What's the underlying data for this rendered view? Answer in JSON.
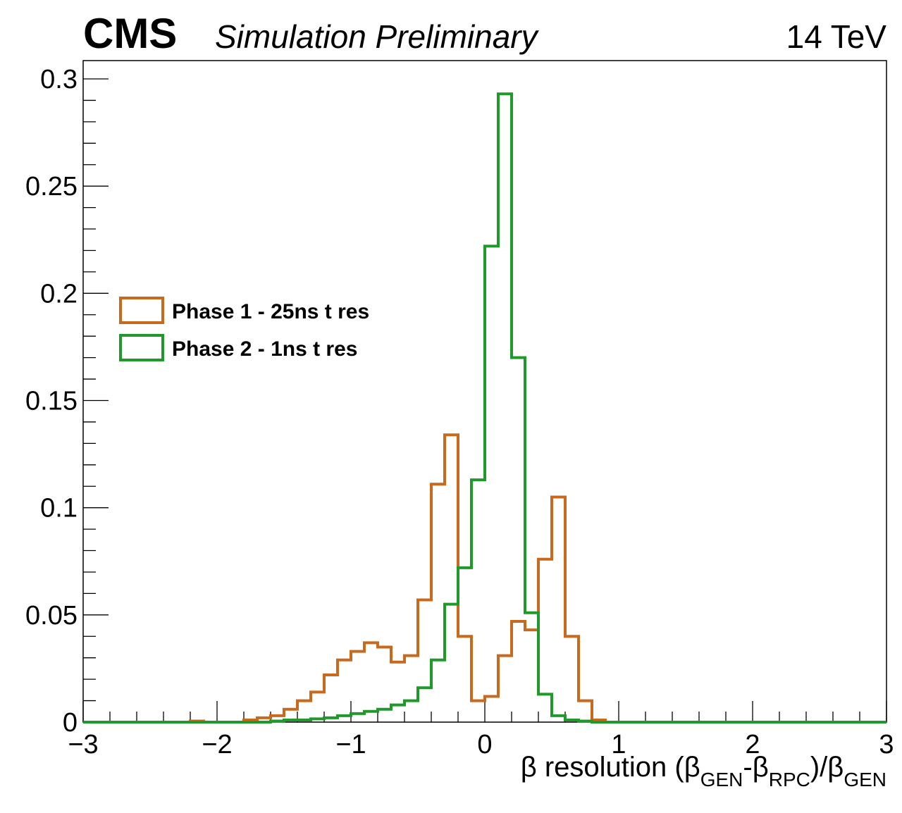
{
  "header": {
    "experiment": "CMS",
    "status": "Simulation Preliminary",
    "energy": "14 TeV"
  },
  "chart_data": {
    "type": "histogram",
    "xlabel": {
      "prefix": "β resolution (β",
      "sub1": "GEN",
      "mid1": "-β",
      "sub2": "RPC",
      "mid2": ")/β",
      "sub3": "GEN"
    },
    "ylabel": "",
    "xlim": [
      -3,
      3
    ],
    "ylim": [
      0,
      0.3
    ],
    "x_ticks": [
      -3,
      -2,
      -1,
      0,
      1,
      2,
      3
    ],
    "x_tick_labels": [
      "−3",
      "−2",
      "−1",
      "0",
      "1",
      "2",
      "3"
    ],
    "y_ticks": [
      0,
      0.05,
      0.1,
      0.15,
      0.2,
      0.25,
      0.3
    ],
    "y_tick_labels": [
      "0",
      "0.05",
      "0.1",
      "0.15",
      "0.2",
      "0.25",
      "0.3"
    ],
    "legend_position": "upper-left",
    "bin_edges": [
      -3.0,
      -2.9,
      -2.8,
      -2.7,
      -2.6,
      -2.5,
      -2.4,
      -2.3,
      -2.2,
      -2.1,
      -2.0,
      -1.9,
      -1.8,
      -1.7,
      -1.6,
      -1.5,
      -1.4,
      -1.3,
      -1.2,
      -1.1,
      -1.0,
      -0.9,
      -0.8,
      -0.7,
      -0.6,
      -0.5,
      -0.4,
      -0.3,
      -0.2,
      -0.1,
      0.0,
      0.1,
      0.2,
      0.3,
      0.4,
      0.5,
      0.6,
      0.7,
      0.8,
      0.9,
      1.0,
      1.1,
      1.2,
      1.3,
      1.4,
      1.5,
      1.6,
      1.7,
      1.8,
      1.9,
      2.0,
      2.1,
      2.2,
      2.3,
      2.4,
      2.5,
      2.6,
      2.7,
      2.8,
      2.9,
      3.0
    ],
    "series": [
      {
        "name": "Phase 1 - 25ns t res",
        "color": "#c8691e",
        "values": [
          0,
          0,
          0,
          0,
          0,
          0,
          0,
          0,
          0.0005,
          0,
          0,
          0,
          0.001,
          0.002,
          0.003,
          0.006,
          0.01,
          0.014,
          0.022,
          0.029,
          0.033,
          0.037,
          0.035,
          0.028,
          0.031,
          0.057,
          0.111,
          0.134,
          0.04,
          0.01,
          0.012,
          0.031,
          0.047,
          0.043,
          0.076,
          0.105,
          0.04,
          0.01,
          0.001,
          0,
          0,
          0,
          0,
          0,
          0,
          0,
          0,
          0,
          0,
          0,
          0,
          0,
          0,
          0,
          0,
          0,
          0,
          0,
          0,
          0
        ]
      },
      {
        "name": "Phase 2 - 1ns t res",
        "color": "#1f9a2a",
        "values": [
          0,
          0,
          0,
          0,
          0,
          0,
          0,
          0,
          0,
          0,
          0,
          0,
          0,
          0,
          0.0005,
          0.001,
          0.001,
          0.0015,
          0.002,
          0.003,
          0.004,
          0.005,
          0.006,
          0.008,
          0.01,
          0.016,
          0.029,
          0.055,
          0.072,
          0.113,
          0.222,
          0.293,
          0.17,
          0.051,
          0.013,
          0.003,
          0.001,
          0.0005,
          0,
          0,
          0,
          0,
          0,
          0,
          0,
          0,
          0,
          0,
          0,
          0,
          0,
          0,
          0,
          0,
          0,
          0,
          0,
          0,
          0,
          0
        ]
      }
    ]
  }
}
